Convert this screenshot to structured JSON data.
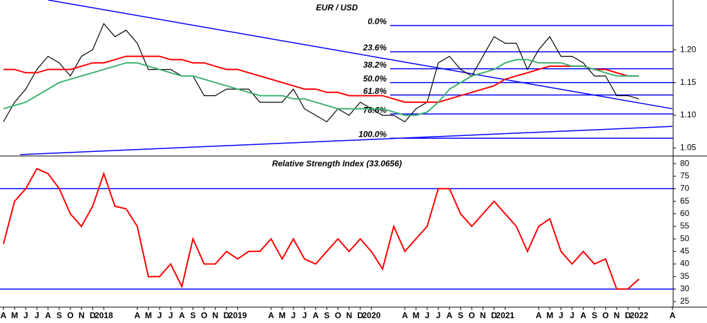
{
  "chart_data": [
    {
      "type": "line",
      "title": "EUR / USD",
      "categories": [
        "A",
        "M",
        "J",
        "J",
        "A",
        "S",
        "O",
        "N",
        "D",
        "2018",
        null,
        null,
        "A",
        "M",
        "J",
        "J",
        "A",
        "S",
        "O",
        "N",
        "D",
        "2019",
        null,
        null,
        "A",
        "M",
        "J",
        "J",
        "A",
        "S",
        "O",
        "N",
        "D",
        "2020",
        null,
        null,
        "A",
        "M",
        "J",
        "J",
        "A",
        "S",
        "O",
        "N",
        "D",
        "2021",
        null,
        null,
        "A",
        "M",
        "J",
        "J",
        "A",
        "S",
        "O",
        "N",
        "D",
        "2022",
        null,
        null,
        "A"
      ],
      "series": [
        {
          "color": "#000000",
          "values": [
            1.09,
            1.12,
            1.14,
            1.17,
            1.19,
            1.18,
            1.16,
            1.19,
            1.2,
            1.24,
            1.22,
            1.23,
            1.21,
            1.17,
            1.17,
            1.17,
            1.16,
            1.16,
            1.13,
            1.13,
            1.14,
            1.14,
            1.14,
            1.12,
            1.12,
            1.12,
            1.14,
            1.11,
            1.1,
            1.09,
            1.11,
            1.1,
            1.12,
            1.11,
            1.1,
            1.1,
            1.09,
            1.11,
            1.12,
            1.18,
            1.19,
            1.17,
            1.16,
            1.19,
            1.22,
            1.21,
            1.21,
            1.17,
            1.2,
            1.22,
            1.19,
            1.19,
            1.18,
            1.16,
            1.16,
            1.13,
            1.13,
            1.125,
            null,
            null,
            null
          ]
        },
        {
          "color": "#ff0000",
          "values": [
            1.17,
            1.17,
            1.165,
            1.165,
            1.17,
            1.17,
            1.17,
            1.175,
            1.18,
            1.18,
            1.185,
            1.19,
            1.19,
            1.19,
            1.19,
            1.185,
            1.185,
            1.18,
            1.18,
            1.175,
            1.17,
            1.17,
            1.165,
            1.16,
            1.155,
            1.15,
            1.145,
            1.14,
            1.14,
            1.135,
            1.135,
            1.13,
            1.13,
            1.13,
            1.13,
            1.125,
            1.12,
            1.12,
            1.12,
            1.12,
            1.125,
            1.13,
            1.135,
            1.14,
            1.145,
            1.155,
            1.16,
            1.165,
            1.17,
            1.175,
            1.175,
            1.175,
            1.175,
            1.17,
            1.17,
            1.165,
            1.16,
            1.16,
            null,
            null,
            null
          ]
        },
        {
          "color": "#3cb371",
          "values": [
            1.11,
            1.115,
            1.12,
            1.13,
            1.14,
            1.15,
            1.155,
            1.16,
            1.165,
            1.17,
            1.175,
            1.18,
            1.18,
            1.175,
            1.17,
            1.165,
            1.16,
            1.16,
            1.155,
            1.15,
            1.145,
            1.14,
            1.135,
            1.13,
            1.13,
            1.13,
            1.125,
            1.125,
            1.12,
            1.115,
            1.11,
            1.11,
            1.11,
            1.11,
            1.11,
            1.105,
            1.1,
            1.1,
            1.105,
            1.12,
            1.14,
            1.15,
            1.16,
            1.165,
            1.17,
            1.18,
            1.185,
            1.185,
            1.18,
            1.18,
            1.18,
            1.175,
            1.175,
            1.17,
            1.165,
            1.16,
            1.16,
            1.16,
            null,
            null,
            null
          ]
        }
      ],
      "fibonacci": [
        {
          "label": "0.0%",
          "value": 1.237
        },
        {
          "label": "23.6%",
          "value": 1.197
        },
        {
          "label": "38.2%",
          "value": 1.171
        },
        {
          "label": "50.0%",
          "value": 1.15
        },
        {
          "label": "61.8%",
          "value": 1.131
        },
        {
          "label": "78.6%",
          "value": 1.102
        },
        {
          "label": "100.0%",
          "value": 1.065
        }
      ],
      "trendlines": [
        {
          "color": "#0000ff",
          "x": [
            4,
            60
          ],
          "y": [
            1.276,
            1.11
          ]
        },
        {
          "color": "#0000ff",
          "x": [
            1.5,
            60
          ],
          "y": [
            1.04,
            1.083
          ]
        }
      ],
      "ylim": [
        1.04,
        1.276
      ],
      "yticks": [
        1.05,
        {
          "value": 1.1,
          "label": "1.10"
        },
        1.15,
        {
          "value": 1.2,
          "label": "1.20"
        }
      ]
    },
    {
      "type": "line",
      "title": "Relative Strength Index (33.0656)",
      "series": [
        {
          "color": "#ff0000",
          "values": [
            48,
            65,
            70,
            78,
            76,
            70,
            60,
            55,
            63,
            76,
            63,
            62,
            55,
            35,
            35,
            40,
            31,
            50,
            40,
            40,
            45,
            42,
            45,
            45,
            50,
            42,
            50,
            42,
            40,
            45,
            50,
            45,
            50,
            45,
            38,
            55,
            45,
            50,
            55,
            70,
            70,
            60,
            55,
            60,
            65,
            60,
            55,
            45,
            55,
            58,
            45,
            40,
            45,
            40,
            42,
            30,
            30,
            34,
            null,
            null,
            null
          ]
        }
      ],
      "levels": [
        70,
        30
      ],
      "level_color": "#0000ff",
      "ylim": [
        22.8,
        82.5
      ],
      "yticks": [
        25,
        30,
        35,
        40,
        45,
        50,
        55,
        60,
        65,
        70,
        75,
        80
      ]
    }
  ]
}
